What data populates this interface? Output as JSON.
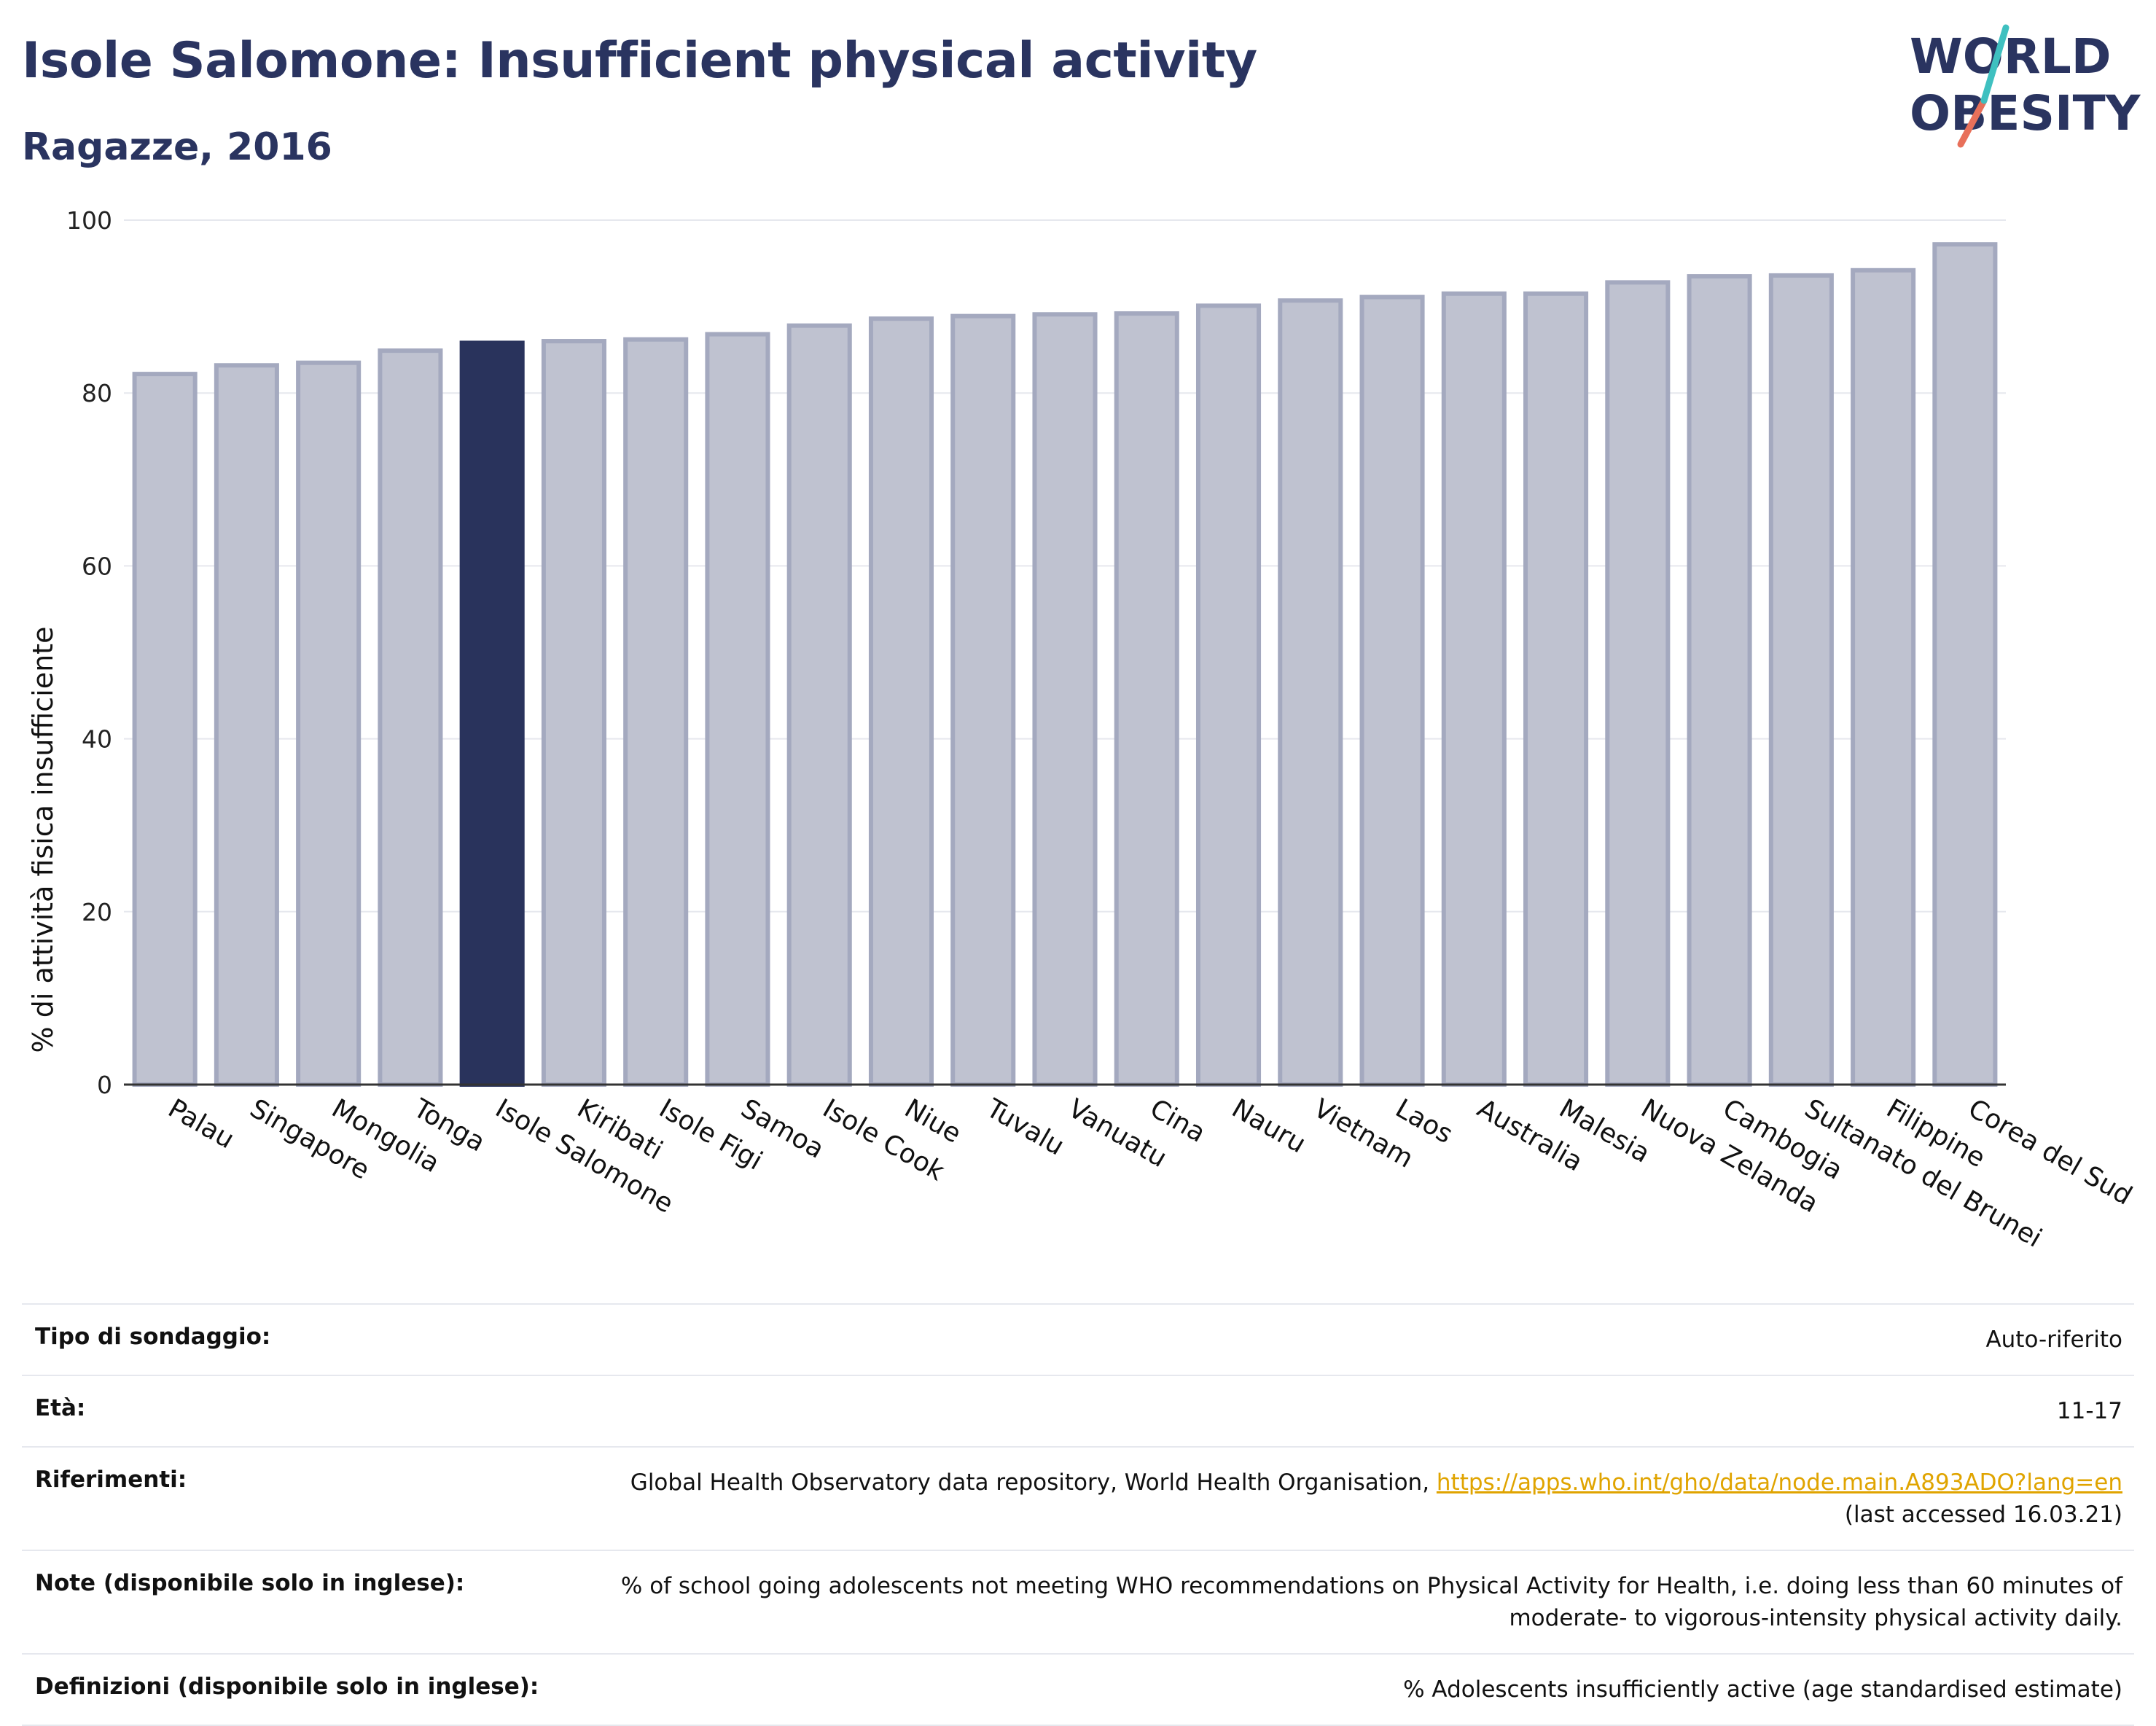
{
  "header": {
    "title": "Isole Salomone: Insufficient physical activity",
    "subtitle": "Ragazze, 2016"
  },
  "logo": {
    "line1": "WORLD",
    "line2": "OBESITY"
  },
  "colors": {
    "highlight_bar": "#29335c",
    "default_bar": "#bfc2d0",
    "bar_border": "#a4a9bf",
    "title": "#2a3460",
    "link": "#e0a400"
  },
  "chart_data": {
    "type": "bar",
    "title": "Isole Salomone: Insufficient physical activity",
    "subtitle": "Ragazze, 2016",
    "xlabel": "",
    "ylabel": "% di attività fisica insufficiente",
    "ylim": [
      0,
      100
    ],
    "yticks": [
      0,
      20,
      40,
      60,
      80,
      100
    ],
    "grid": true,
    "highlight": "Isole Salomone",
    "categories": [
      "Palau",
      "Singapore",
      "Mongolia",
      "Tonga",
      "Isole Salomone",
      "Kiribati",
      "Isole Figi",
      "Samoa",
      "Isole Cook",
      "Niue",
      "Tuvalu",
      "Vanuatu",
      "Cina",
      "Nauru",
      "Vietnam",
      "Laos",
      "Australia",
      "Malesia",
      "Nuova Zelanda",
      "Cambogia",
      "Sultanato del Brunei",
      "Filippine",
      "Corea del Sud"
    ],
    "values": [
      82.2,
      83.2,
      83.5,
      84.9,
      85.8,
      86.0,
      86.2,
      86.8,
      87.8,
      88.6,
      88.9,
      89.1,
      89.2,
      90.1,
      90.7,
      91.1,
      91.5,
      91.5,
      92.8,
      93.5,
      93.6,
      94.2,
      97.2
    ]
  },
  "info": {
    "rows": [
      {
        "label": "Tipo di sondaggio:",
        "value": "Auto-riferito"
      },
      {
        "label": "Età:",
        "value": "11-17"
      },
      {
        "label": "Riferimenti:",
        "value": "Global Health Observatory data repository, World Health Organisation, ",
        "link": "https://apps.who.int/gho/data/node.main.A893ADO?lang=en",
        "value2": "(last accessed 16.03.21)"
      },
      {
        "label": "Note (disponibile solo in inglese):",
        "value": "% of school going adolescents not meeting WHO recommendations on Physical Activity for Health, i.e. doing less than 60 minutes of moderate- to vigorous-intensity physical activity daily."
      },
      {
        "label": "Definizioni (disponibile solo in inglese):",
        "value": "% Adolescents insufficiently active (age standardised estimate)"
      }
    ]
  }
}
